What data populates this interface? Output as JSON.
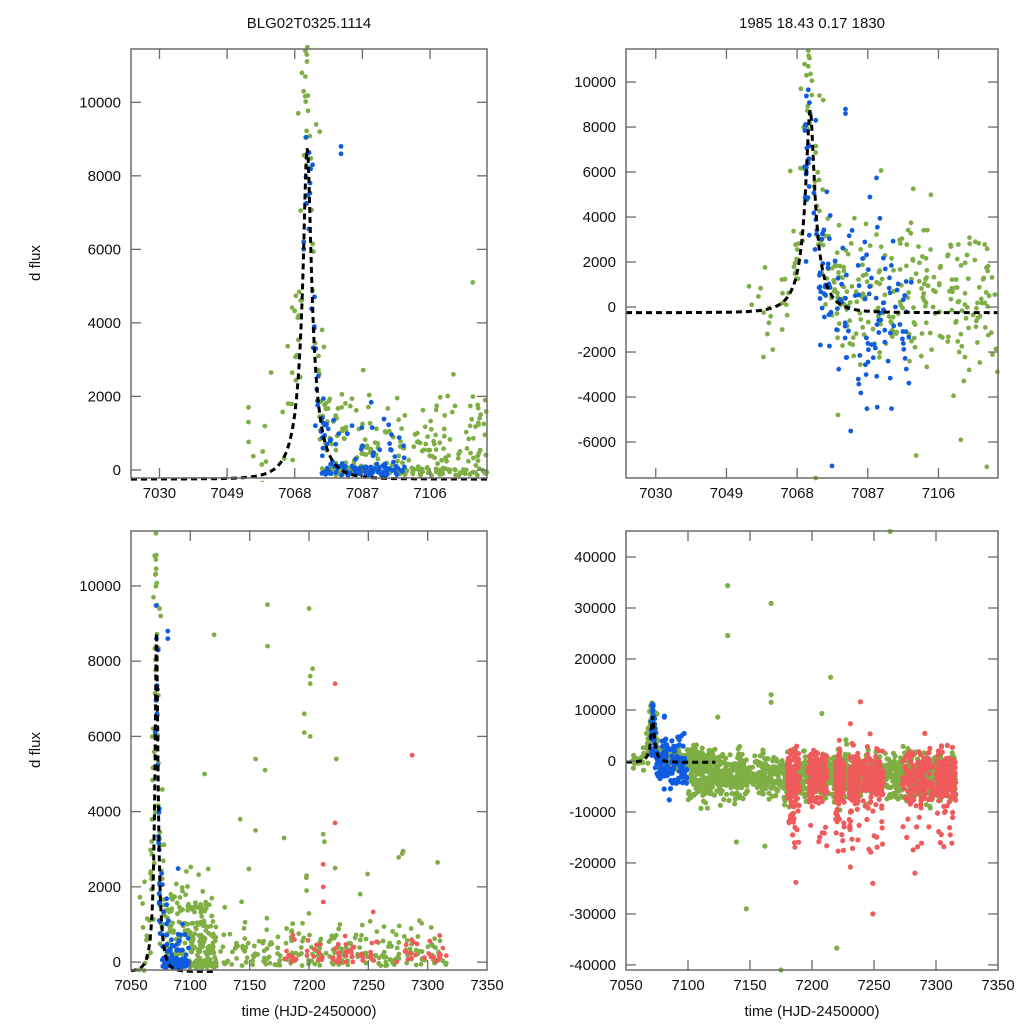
{
  "figure": {
    "titles": {
      "left": "BLG02T0325.1114",
      "right": "1985  18.43  0.17  1830"
    }
  },
  "colors": {
    "green": "#7fae45",
    "blue": "#0f5ce0",
    "red": "#ef5b5b",
    "fit": "#000000",
    "frame": "#6b6b6b"
  },
  "chart_data": [
    {
      "id": "top-left",
      "type": "scatter",
      "title": "BLG02T0325.1114",
      "xlabel": "",
      "ylabel": "d flux",
      "xlim": [
        7022,
        7122
      ],
      "ylim": [
        -220,
        11450
      ],
      "xticks": [
        7030,
        7049,
        7068,
        7087,
        7106
      ],
      "yticks": [
        0,
        2000,
        4000,
        6000,
        8000,
        10000
      ],
      "grid": false,
      "legend": "none",
      "series": [
        {
          "name": "green",
          "color_key": "green",
          "description": "survey photometry, peak near 7068-7072 up to ~11400, decaying to ~0 by 7120"
        },
        {
          "name": "blue",
          "color_key": "blue",
          "description": "second site photometry, 7068-7098, values -200 to 8900"
        }
      ],
      "fit": {
        "type": "paczynski",
        "t0": 7071.5,
        "peak": 8750,
        "baseline": -250,
        "tE": 6.5,
        "x_range": [
          7022,
          7122
        ]
      }
    },
    {
      "id": "top-right",
      "type": "scatter",
      "title": "1985  18.43  0.17  1830",
      "xlabel": "",
      "ylabel": "",
      "xlim": [
        7022,
        7122
      ],
      "ylim": [
        -7600,
        11470
      ],
      "xticks": [
        7030,
        7049,
        7068,
        7087,
        7106
      ],
      "yticks": [
        -6000,
        -4000,
        -2000,
        0,
        2000,
        4000,
        6000,
        8000,
        10000
      ],
      "grid": false,
      "legend": "none",
      "series": [
        {
          "name": "green",
          "color_key": "green",
          "description": "survey photometry with scatter to -7000"
        },
        {
          "name": "blue",
          "color_key": "blue",
          "description": "second site photometry, 7068-7100, scatter to -6000"
        }
      ],
      "fit": {
        "type": "paczynski",
        "t0": 7071.5,
        "peak": 8750,
        "baseline": -250,
        "tE": 6.5,
        "x_range": [
          7022,
          7122
        ]
      }
    },
    {
      "id": "bottom-left",
      "type": "scatter",
      "title": "",
      "xlabel": "time (HJD-2450000)",
      "ylabel": "d flux",
      "xlim": [
        7050,
        7350
      ],
      "ylim": [
        -210,
        11460
      ],
      "xticks": [
        7050,
        7100,
        7150,
        7200,
        7250,
        7300,
        7350
      ],
      "yticks": [
        0,
        2000,
        4000,
        6000,
        8000,
        10000
      ],
      "grid": false,
      "legend": "none",
      "series": [
        {
          "name": "green",
          "color_key": "green",
          "description": "7050-7320 photometry, sparse outliers up to 9500"
        },
        {
          "name": "blue",
          "color_key": "blue",
          "description": "7068-7100"
        },
        {
          "name": "red",
          "color_key": "red",
          "description": "7180-7300, mostly near 0 with outliers to 7400"
        }
      ],
      "fit": {
        "type": "paczynski",
        "t0": 7071.5,
        "peak": 8750,
        "baseline": -250,
        "tE": 6.5,
        "x_range": [
          7050,
          7122
        ]
      }
    },
    {
      "id": "bottom-right",
      "type": "scatter",
      "title": "",
      "xlabel": "time (HJD-2450000)",
      "ylabel": "",
      "xlim": [
        7050,
        7350
      ],
      "ylim": [
        -41000,
        45100
      ],
      "xticks": [
        7050,
        7100,
        7150,
        7200,
        7250,
        7300,
        7350
      ],
      "yticks": [
        -40000,
        -30000,
        -20000,
        -10000,
        0,
        10000,
        20000,
        30000,
        40000
      ],
      "grid": false,
      "legend": "none",
      "series": [
        {
          "name": "green",
          "color_key": "green",
          "description": "7050-7316 dense band around -3000, outliers 34400, 30900, 24600, 16400, -29000, -36700, -41000, 45000"
        },
        {
          "name": "blue",
          "color_key": "blue",
          "description": "7068-7100, 9000 to -6000"
        },
        {
          "name": "red",
          "color_key": "red",
          "description": "7180-7316 dense band -8000 to 2000, outliers to 11600, -30000"
        }
      ],
      "fit": {
        "type": "paczynski",
        "t0": 7071.5,
        "peak": 8750,
        "baseline": -250,
        "tE": 6.5,
        "x_range": [
          7050,
          7122
        ]
      }
    }
  ]
}
